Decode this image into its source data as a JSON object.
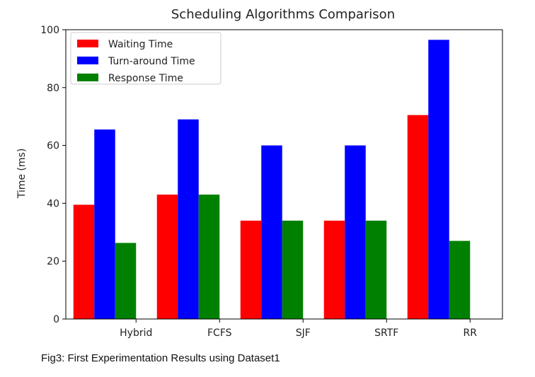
{
  "chart_data": {
    "type": "bar",
    "title": "Scheduling Algorithms Comparison",
    "xlabel": "",
    "ylabel": "Time (ms)",
    "ylim": [
      0,
      100
    ],
    "yticks": [
      0,
      20,
      40,
      60,
      80,
      100
    ],
    "categories": [
      "Hybrid",
      "FCFS",
      "SJF",
      "SRTF",
      "RR"
    ],
    "series": [
      {
        "name": "Waiting Time",
        "color": "#ff0000",
        "values": [
          39.5,
          43,
          34,
          34,
          70.5
        ]
      },
      {
        "name": "Turn-around Time",
        "color": "#0000ff",
        "values": [
          65.5,
          69,
          60,
          60,
          96.5
        ]
      },
      {
        "name": "Response Time",
        "color": "#008000",
        "values": [
          26.3,
          43,
          34,
          34,
          27
        ]
      }
    ],
    "legend": "top-left",
    "grid": false
  },
  "caption": "Fig3:  First Experimentation Results using Dataset1"
}
